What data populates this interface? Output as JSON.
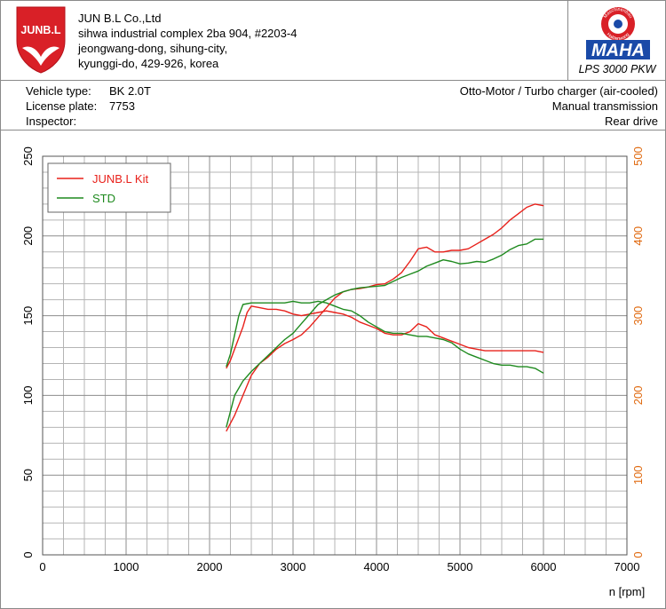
{
  "company": {
    "name": "JUN B.L Co.,Ltd",
    "address_lines": [
      "sihwa industrial complex 2ba 904, #2203-4",
      "jeongwang-dong, sihung-city,",
      "kyunggi-do, 429-926, korea"
    ],
    "logo_text": "JUNB.L",
    "logo_color": "#d92027"
  },
  "maha": {
    "logo_text": "MAHA",
    "ring_top": "Maschinenbau",
    "ring_bottom": "Haldenwang",
    "model": "LPS 3000 PKW",
    "blue": "#1a4aa8",
    "red": "#d92027"
  },
  "vehicle": {
    "type_label": "Vehicle type:",
    "type_value": "BK 2.0T",
    "plate_label": "License plate:",
    "plate_value": "7753",
    "inspector_label": "Inspector:",
    "inspector_value": "",
    "engine": "Otto-Motor / Turbo charger (air-cooled)",
    "transmission": "Manual transmission",
    "drive": "Rear drive"
  },
  "chart_data": {
    "type": "line",
    "xlabel": "n [rpm]",
    "xlim": [
      0,
      7000
    ],
    "x_ticks": [
      0,
      1000,
      2000,
      3000,
      4000,
      5000,
      6000,
      7000
    ],
    "y_left_lim": [
      0,
      250
    ],
    "y_left_ticks": [
      0,
      50,
      100,
      150,
      200,
      250
    ],
    "y_right_lim": [
      0,
      500
    ],
    "y_right_ticks": [
      0,
      100,
      200,
      300,
      400,
      500
    ],
    "grid": true,
    "legend_position": "top-left",
    "colors": {
      "kit": "#e8201a",
      "std": "#1e8a1e",
      "right_axis": "#e06a10"
    },
    "series": [
      {
        "name": "JUNB.L Kit",
        "group": "left",
        "color": "#e8201a",
        "x": [
          2200,
          2250,
          2300,
          2350,
          2400,
          2450,
          2500,
          2600,
          2700,
          2800,
          2900,
          3000,
          3100,
          3200,
          3300,
          3400,
          3500,
          3600,
          3700,
          3800,
          3900,
          4000,
          4100,
          4200,
          4300,
          4400,
          4500,
          4600,
          4700,
          4800,
          4900,
          5000,
          5100,
          5200,
          5300,
          5400,
          5500,
          5600,
          5700,
          5800,
          5900,
          6000
        ],
        "y": [
          117,
          122,
          129,
          136,
          143,
          152,
          156,
          155,
          154,
          154,
          153,
          151,
          150,
          151,
          152,
          153,
          152,
          151,
          149,
          146,
          144,
          142,
          139,
          138,
          138,
          140,
          145,
          143,
          138,
          136,
          134,
          132,
          130,
          129,
          128,
          128,
          128,
          128,
          128,
          128,
          128,
          127
        ]
      },
      {
        "name": "STD",
        "group": "left",
        "color": "#1e8a1e",
        "x": [
          2200,
          2250,
          2300,
          2350,
          2400,
          2500,
          2600,
          2700,
          2800,
          2900,
          3000,
          3100,
          3200,
          3300,
          3400,
          3500,
          3600,
          3700,
          3800,
          3900,
          4000,
          4100,
          4200,
          4300,
          4400,
          4500,
          4600,
          4700,
          4800,
          4900,
          5000,
          5100,
          5200,
          5300,
          5400,
          5500,
          5600,
          5700,
          5800,
          5900,
          6000
        ],
        "y": [
          118,
          126,
          138,
          150,
          157,
          158,
          158,
          158,
          158,
          158,
          159,
          158,
          158,
          159,
          158,
          156,
          154,
          153,
          150,
          146,
          143,
          140,
          139,
          139,
          138,
          137,
          137,
          136,
          135,
          133,
          129,
          126,
          124,
          122,
          120,
          119,
          119,
          118,
          118,
          117,
          114
        ]
      },
      {
        "group": "right",
        "color": "#e8201a",
        "x": [
          2200,
          2250,
          2300,
          2400,
          2500,
          2600,
          2700,
          2800,
          2900,
          3000,
          3100,
          3200,
          3300,
          3400,
          3500,
          3600,
          3700,
          3800,
          3900,
          4000,
          4100,
          4200,
          4300,
          4400,
          4500,
          4600,
          4700,
          4800,
          4900,
          5000,
          5100,
          5200,
          5300,
          5400,
          5500,
          5600,
          5700,
          5800,
          5900,
          6000
        ],
        "y": [
          155,
          165,
          175,
          200,
          225,
          240,
          248,
          258,
          265,
          270,
          276,
          286,
          298,
          310,
          322,
          330,
          333,
          334,
          336,
          339,
          340,
          346,
          354,
          368,
          384,
          386,
          380,
          380,
          382,
          382,
          384,
          390,
          396,
          402,
          410,
          420,
          428,
          436,
          440,
          438
        ]
      },
      {
        "group": "right",
        "color": "#1e8a1e",
        "x": [
          2200,
          2250,
          2300,
          2400,
          2500,
          2600,
          2700,
          2800,
          2900,
          3000,
          3100,
          3200,
          3300,
          3400,
          3500,
          3600,
          3700,
          3800,
          3900,
          4000,
          4100,
          4200,
          4300,
          4400,
          4500,
          4600,
          4700,
          4800,
          4900,
          5000,
          5100,
          5200,
          5300,
          5400,
          5500,
          5600,
          5700,
          5800,
          5900,
          6000
        ],
        "y": [
          160,
          180,
          200,
          218,
          230,
          240,
          250,
          260,
          270,
          278,
          290,
          302,
          314,
          320,
          326,
          330,
          333,
          335,
          336,
          337,
          338,
          343,
          348,
          352,
          356,
          362,
          366,
          370,
          368,
          365,
          366,
          368,
          367,
          371,
          376,
          383,
          388,
          390,
          396,
          396
        ]
      }
    ]
  }
}
